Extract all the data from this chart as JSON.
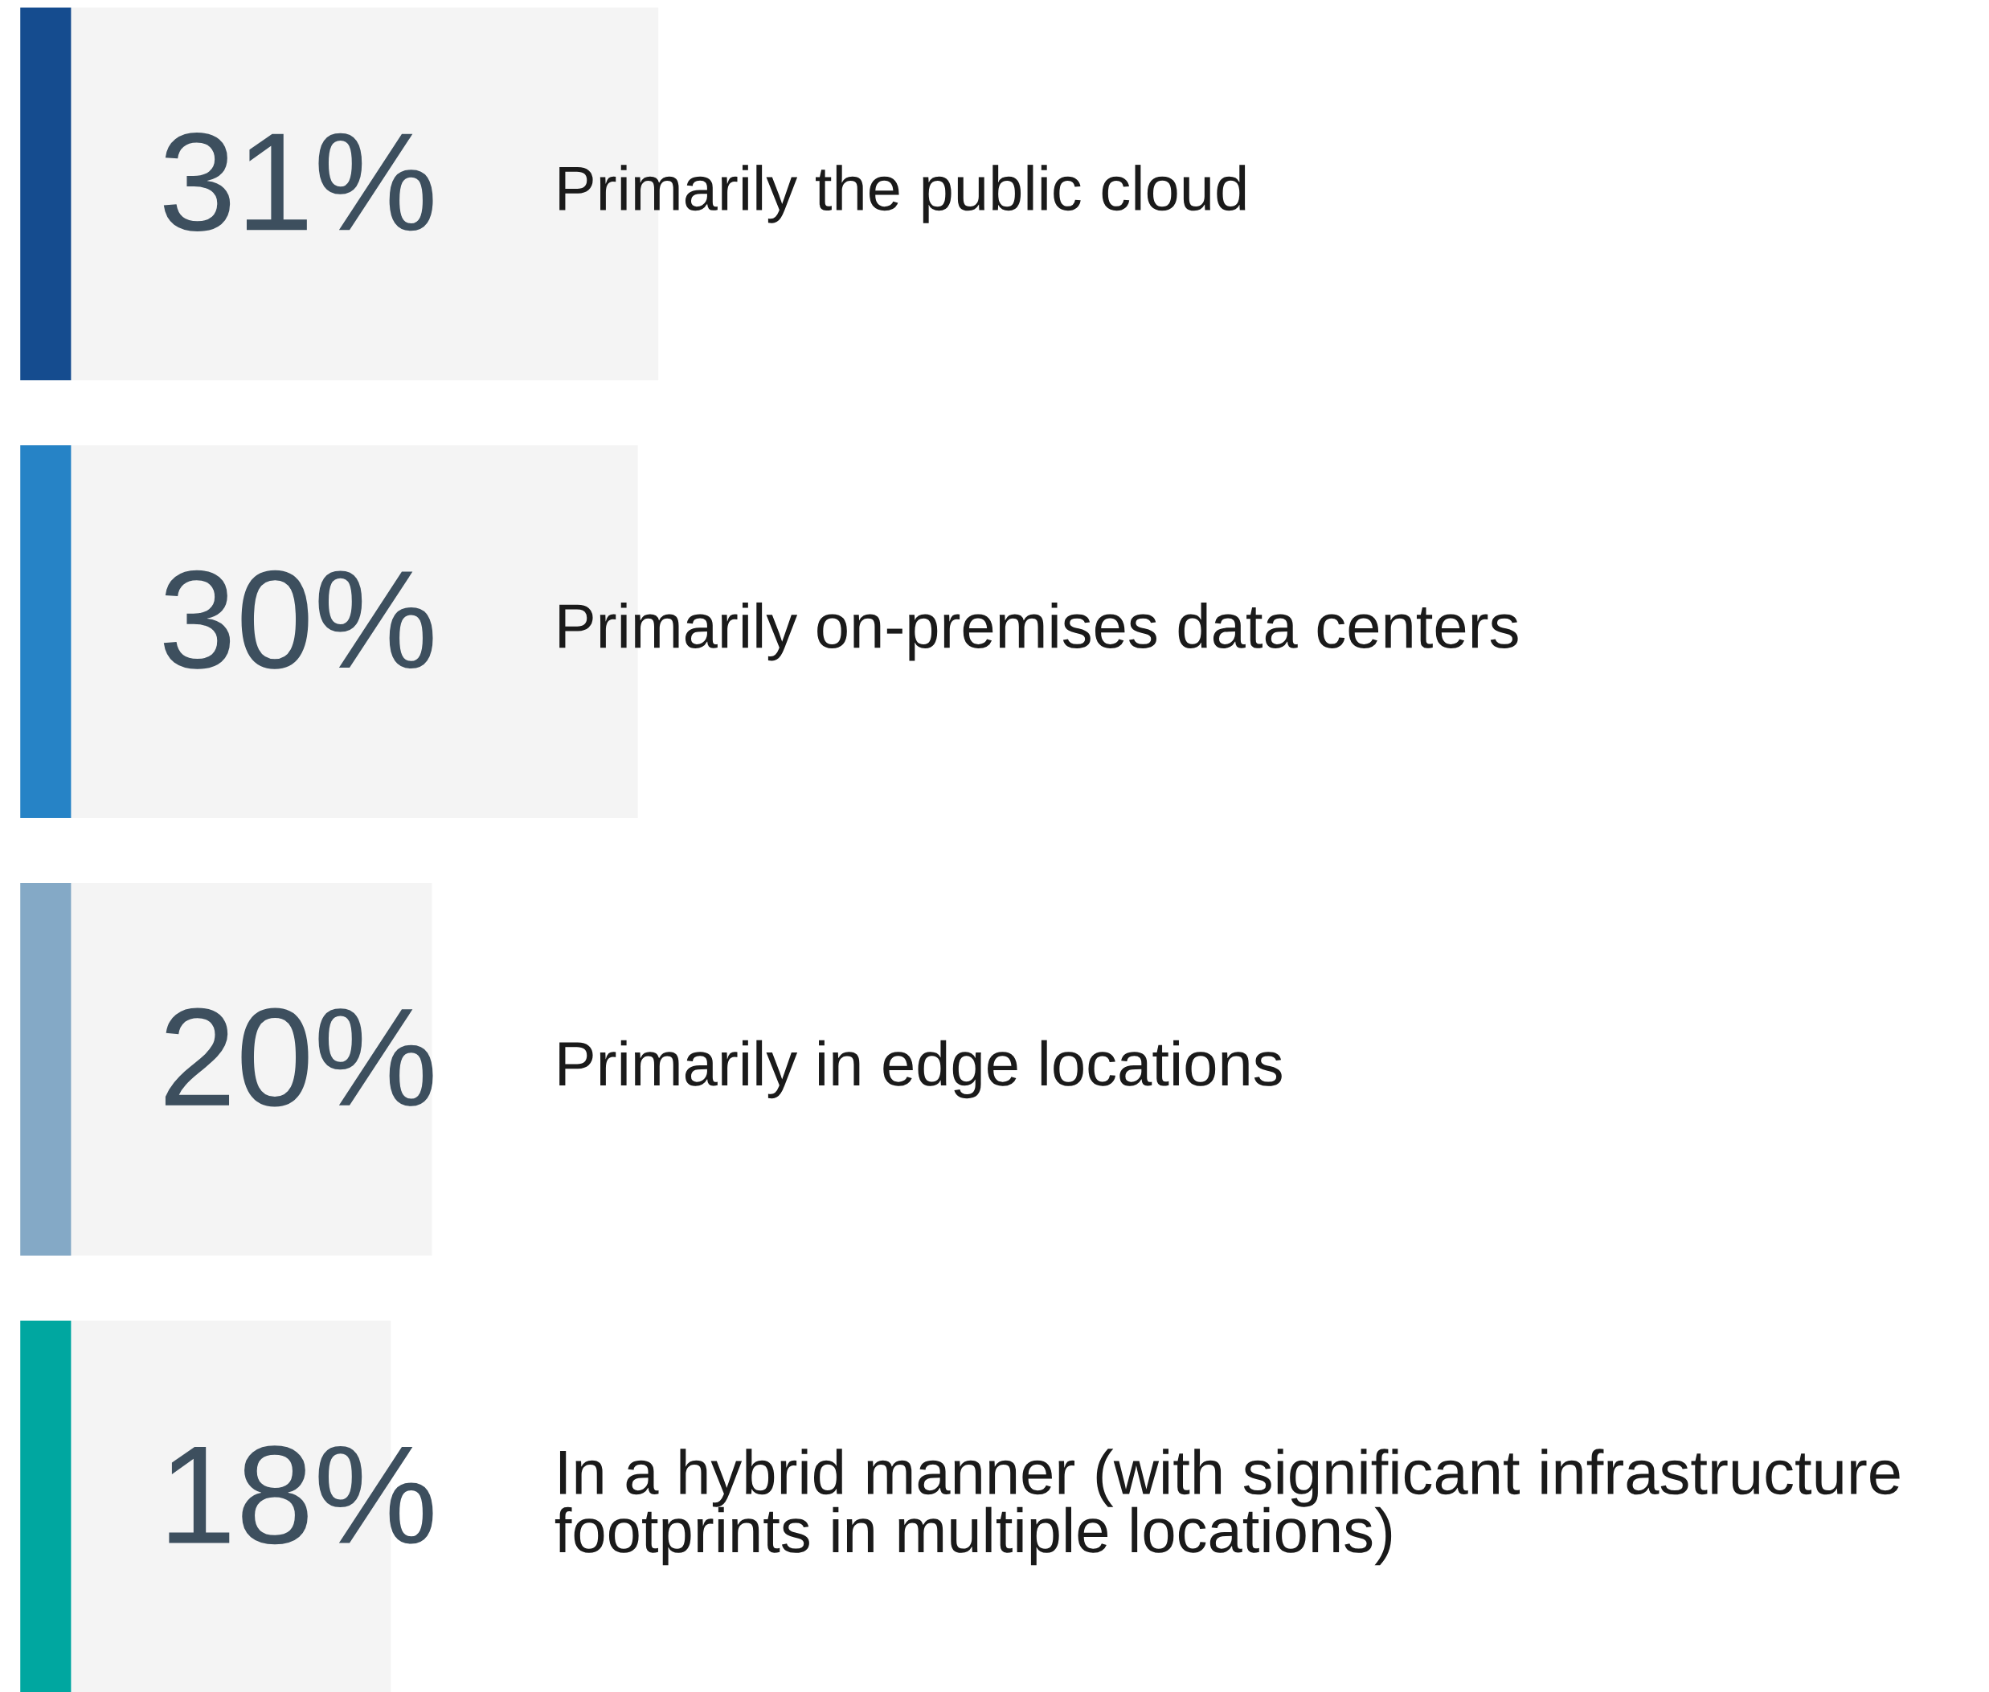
{
  "chart_data": {
    "type": "bar",
    "orientation": "horizontal",
    "categories": [
      "Primarily the public cloud",
      "Primarily on-premises data centers",
      "Primarily in edge locations",
      "In a hybrid manner (with significant infrastructure footprints in multiple locations)"
    ],
    "values": [
      31,
      30,
      20,
      18
    ],
    "value_labels": [
      "31%",
      "30%",
      "20%",
      "18%"
    ],
    "color": "#f4f4f4"
  }
}
